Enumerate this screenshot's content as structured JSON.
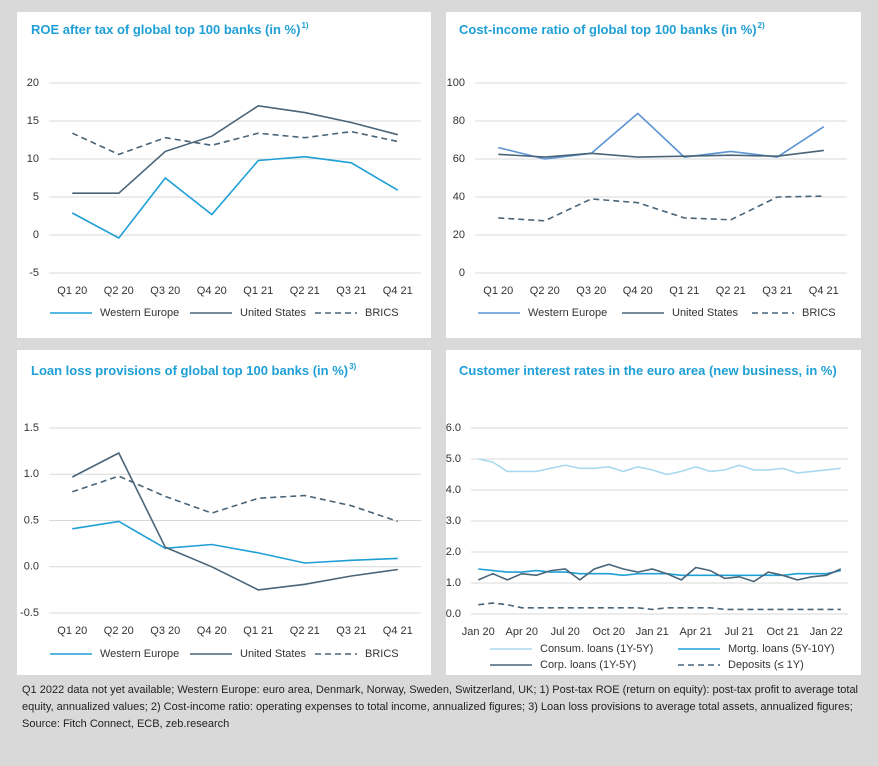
{
  "chart_data": [
    {
      "type": "line",
      "title": "ROE after tax of global top 100 banks (in %)",
      "title_note": "1)",
      "categories": [
        "Q1 20",
        "Q2 20",
        "Q3 20",
        "Q4 20",
        "Q1 21",
        "Q2 21",
        "Q3 21",
        "Q4 21"
      ],
      "ylim": [
        -5,
        20
      ],
      "yticks": [
        -5,
        0,
        5,
        10,
        15,
        20
      ],
      "grid": true,
      "series": [
        {
          "name": "Western Europe",
          "color": "#1e9fd6",
          "dashed": false,
          "values": [
            2.9,
            -0.4,
            7.5,
            2.7,
            9.8,
            10.3,
            9.5,
            5.9
          ]
        },
        {
          "name": "United States",
          "color": "#4a6478",
          "dashed": false,
          "values": [
            5.5,
            5.5,
            11.0,
            13.0,
            17.0,
            16.1,
            14.8,
            13.2
          ]
        },
        {
          "name": "BRICS",
          "color": "#4a6478",
          "dashed": true,
          "values": [
            13.4,
            10.6,
            12.8,
            11.8,
            13.4,
            12.8,
            13.6,
            12.3
          ]
        }
      ]
    },
    {
      "type": "line",
      "title": "Cost-income ratio of global top 100 banks (in %)",
      "title_note": "2)",
      "categories": [
        "Q1 20",
        "Q2 20",
        "Q3 20",
        "Q4 20",
        "Q1 21",
        "Q2 21",
        "Q3 21",
        "Q4 21"
      ],
      "ylim": [
        0,
        100
      ],
      "yticks": [
        0,
        20,
        40,
        60,
        80,
        100
      ],
      "grid": true,
      "series": [
        {
          "name": "Western Europe",
          "color": "#5b93d3",
          "dashed": false,
          "values": [
            66,
            60,
            63,
            84,
            61,
            64,
            61,
            77
          ]
        },
        {
          "name": "United States",
          "color": "#4a6478",
          "dashed": false,
          "values": [
            62.5,
            61,
            63,
            61,
            61.5,
            62,
            61.5,
            64.5
          ]
        },
        {
          "name": "BRICS",
          "color": "#4a6478",
          "dashed": true,
          "values": [
            29,
            27.5,
            39,
            37,
            29,
            28,
            40,
            40.5
          ]
        }
      ]
    },
    {
      "type": "line",
      "title": "Loan loss provisions of global top 100 banks (in %)",
      "title_note": "3)",
      "categories": [
        "Q1 20",
        "Q2 20",
        "Q3 20",
        "Q4 20",
        "Q1 21",
        "Q2 21",
        "Q3 21",
        "Q4 21"
      ],
      "ylim": [
        -0.5,
        1.5
      ],
      "yticks": [
        {
          "value": -0.5,
          "label": "-0.5"
        },
        {
          "value": 0,
          "label": "0.0"
        },
        {
          "value": 0.5,
          "label": "0.5"
        },
        {
          "value": 1,
          "label": "1.0"
        },
        {
          "value": 1.5,
          "label": "1.5"
        }
      ],
      "grid": true,
      "series": [
        {
          "name": "Western Europe",
          "color": "#1e9fd6",
          "dashed": false,
          "values": [
            0.41,
            0.49,
            0.2,
            0.24,
            0.15,
            0.04,
            0.07,
            0.09
          ]
        },
        {
          "name": "United States",
          "color": "#4a6478",
          "dashed": false,
          "values": [
            0.97,
            1.23,
            0.21,
            0.0,
            -0.25,
            -0.19,
            -0.1,
            -0.03
          ]
        },
        {
          "name": "BRICS",
          "color": "#4a6478",
          "dashed": true,
          "values": [
            0.81,
            0.98,
            0.76,
            0.58,
            0.74,
            0.77,
            0.66,
            0.49
          ]
        }
      ]
    },
    {
      "type": "line",
      "title": "Customer interest rates in the euro area (new business, in %)",
      "categories": [
        "Jan 20",
        null,
        null,
        "Apr 20",
        null,
        null,
        "Jul 20",
        null,
        null,
        "Oct 20",
        null,
        null,
        "Jan 21",
        null,
        null,
        "Apr 21",
        null,
        null,
        "Jul 21",
        null,
        null,
        "Oct 21",
        null,
        null,
        "Jan 22",
        null
      ],
      "ylim": [
        0,
        6
      ],
      "yticks": [
        {
          "value": 0,
          "label": "0.0"
        },
        {
          "value": 1,
          "label": "1.0"
        },
        {
          "value": 2,
          "label": "2.0"
        },
        {
          "value": 3,
          "label": "3.0"
        },
        {
          "value": 4,
          "label": "4.0"
        },
        {
          "value": 5,
          "label": "5.0"
        },
        {
          "value": 6,
          "label": "6.0"
        }
      ],
      "grid": true,
      "series": [
        {
          "name": "Consum. loans (1Y-5Y)",
          "color": "#a9d9ef",
          "dashed": false,
          "values": [
            5.0,
            4.9,
            4.6,
            4.6,
            4.6,
            4.7,
            4.8,
            4.7,
            4.7,
            4.75,
            4.6,
            4.75,
            4.65,
            4.5,
            4.6,
            4.75,
            4.6,
            4.65,
            4.8,
            4.65,
            4.65,
            4.7,
            4.55,
            4.6,
            4.65,
            4.7
          ]
        },
        {
          "name": "Mortg. loans (5Y-10Y)",
          "color": "#1e9fd6",
          "dashed": false,
          "values": [
            1.45,
            1.4,
            1.35,
            1.35,
            1.4,
            1.35,
            1.35,
            1.3,
            1.3,
            1.3,
            1.25,
            1.3,
            1.3,
            1.3,
            1.25,
            1.25,
            1.25,
            1.25,
            1.25,
            1.25,
            1.25,
            1.25,
            1.3,
            1.3,
            1.3,
            1.4
          ]
        },
        {
          "name": "Corp. loans (1Y-5Y)",
          "color": "#4a6478",
          "dashed": false,
          "values": [
            1.1,
            1.3,
            1.1,
            1.3,
            1.25,
            1.4,
            1.45,
            1.1,
            1.45,
            1.6,
            1.45,
            1.35,
            1.45,
            1.3,
            1.1,
            1.5,
            1.4,
            1.15,
            1.2,
            1.05,
            1.35,
            1.25,
            1.1,
            1.2,
            1.25,
            1.45
          ]
        },
        {
          "name": "Deposits (≤ 1Y)",
          "color": "#4a6478",
          "dashed": true,
          "values": [
            0.3,
            0.35,
            0.3,
            0.2,
            0.2,
            0.2,
            0.2,
            0.2,
            0.2,
            0.2,
            0.2,
            0.2,
            0.15,
            0.2,
            0.2,
            0.2,
            0.2,
            0.15,
            0.15,
            0.15,
            0.15,
            0.15,
            0.15,
            0.15,
            0.15,
            0.15
          ]
        }
      ]
    }
  ],
  "footnote": "Q1 2022 data not yet available; Western Europe: euro area, Denmark, Norway, Sweden, Switzerland, UK; 1) Post-tax ROE (return on equity): post-tax profit to average total equity, annualized values; 2) Cost-income ratio: operating expenses to total income, annualized figures; 3) Loan loss provisions to average total assets, annualized figures; Source: Fitch Connect, ECB, zeb.research"
}
